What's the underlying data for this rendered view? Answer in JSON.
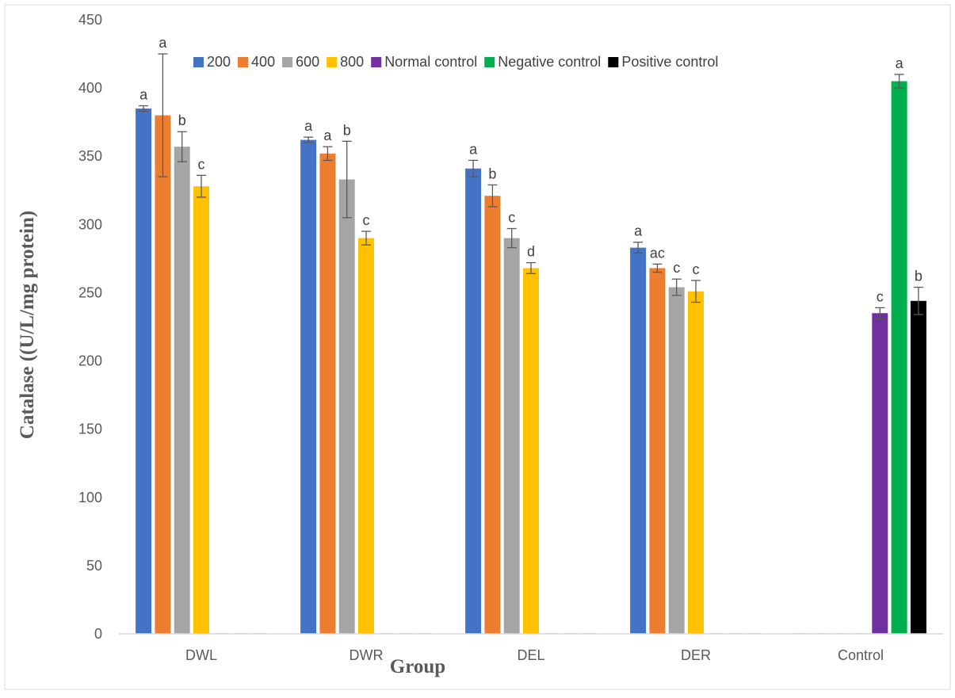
{
  "chart_data": {
    "type": "bar",
    "title": "",
    "xlabel": "Group",
    "ylabel": "Catalase ((U/L/mg protein)",
    "ylim": [
      0,
      450
    ],
    "yticks": [
      0,
      50,
      100,
      150,
      200,
      250,
      300,
      350,
      400,
      450
    ],
    "grid": false,
    "legend_position": "top",
    "categories": [
      "DWL",
      "DWR",
      "DEL",
      "DER",
      "Control"
    ],
    "series": [
      {
        "name": "200",
        "color": "#4472C4",
        "values": [
          385,
          362,
          341,
          283,
          0
        ],
        "errors": [
          2,
          2,
          6,
          4,
          0
        ],
        "labels": [
          "a",
          "a",
          "a",
          "a",
          ""
        ]
      },
      {
        "name": "400",
        "color": "#ED7D31",
        "values": [
          380,
          352,
          321,
          268,
          0
        ],
        "errors": [
          45,
          5,
          8,
          3,
          0
        ],
        "labels": [
          "a",
          "a",
          "b",
          "ac",
          ""
        ]
      },
      {
        "name": "600",
        "color": "#A5A5A5",
        "values": [
          357,
          333,
          290,
          254,
          0
        ],
        "errors": [
          11,
          28,
          7,
          6,
          0
        ],
        "labels": [
          "b",
          "b",
          "c",
          "c",
          ""
        ]
      },
      {
        "name": "800",
        "color": "#FFC000",
        "values": [
          328,
          290,
          268,
          251,
          0
        ],
        "errors": [
          8,
          5,
          4,
          8,
          0
        ],
        "labels": [
          "c",
          "c",
          "d",
          "c",
          ""
        ]
      },
      {
        "name": "Normal control",
        "color": "#7030A0",
        "values": [
          0,
          0,
          0,
          0,
          235
        ],
        "errors": [
          0,
          0,
          0,
          0,
          4
        ],
        "labels": [
          "",
          "",
          "",
          "",
          "c"
        ]
      },
      {
        "name": "Negative control",
        "color": "#00B050",
        "values": [
          0,
          0,
          0,
          0,
          405
        ],
        "errors": [
          0,
          0,
          0,
          0,
          5
        ],
        "labels": [
          "",
          "",
          "",
          "",
          "a"
        ]
      },
      {
        "name": "Positive control",
        "color": "#000000",
        "values": [
          0,
          0,
          0,
          0,
          244
        ],
        "errors": [
          0,
          0,
          0,
          0,
          10
        ],
        "labels": [
          "",
          "",
          "",
          "",
          "b"
        ]
      }
    ]
  }
}
